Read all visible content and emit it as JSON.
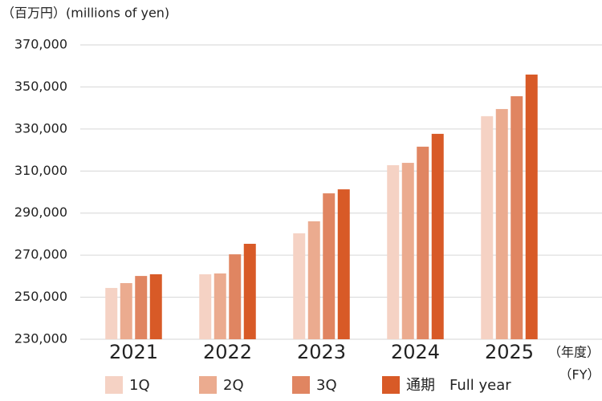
{
  "chart_data": {
    "type": "bar",
    "title": "（百万円）(millions of yen)",
    "x_unit_label": [
      "（年度）",
      "（FY）"
    ],
    "categories": [
      "2021",
      "2022",
      "2023",
      "2024",
      "2025"
    ],
    "series": [
      {
        "name": "1Q",
        "color": "#f5d2c4",
        "values": [
          254400,
          260900,
          280400,
          312800,
          336100
        ]
      },
      {
        "name": "2Q",
        "color": "#ebab8f",
        "values": [
          256700,
          261300,
          286100,
          313900,
          339500
        ]
      },
      {
        "name": "3Q",
        "color": "#e08561",
        "values": [
          260100,
          270400,
          299400,
          321600,
          345600
        ]
      },
      {
        "name": "通期　Full year",
        "color": "#d85a27",
        "values": [
          260900,
          275400,
          301300,
          327700,
          355900
        ]
      }
    ],
    "ylim": [
      230000,
      370000
    ],
    "yticks": [
      {
        "value": 230000,
        "label": "230,000"
      },
      {
        "value": 250000,
        "label": "250,000"
      },
      {
        "value": 270000,
        "label": "270,000"
      },
      {
        "value": 290000,
        "label": "290,000"
      },
      {
        "value": 310000,
        "label": "310,000"
      },
      {
        "value": 330000,
        "label": "330,000"
      },
      {
        "value": 350000,
        "label": "350,000"
      },
      {
        "value": 370000,
        "label": "370,000"
      }
    ],
    "grid": true
  }
}
